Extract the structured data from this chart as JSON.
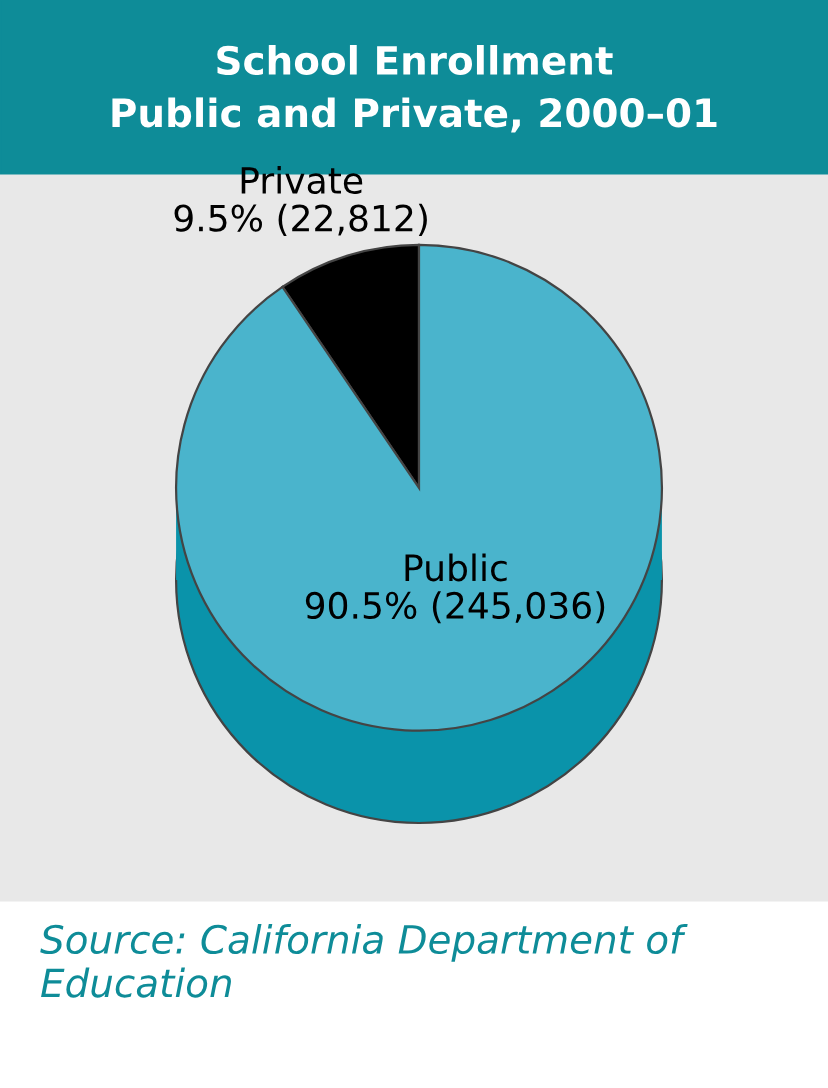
{
  "chart_data": {
    "type": "pie",
    "title": "School Enrollment\nPublic and Private, 2000–01",
    "categories": [
      "Private",
      "Public"
    ],
    "values": [
      9.5,
      90.5
    ],
    "value_labels": [
      "9.5% (22,812)",
      "90.5% (245,036)"
    ],
    "colors": [
      "#000000",
      "#4ab4cc"
    ],
    "legend": false,
    "annotations": [
      "Source: California Department of Education"
    ]
  }
}
